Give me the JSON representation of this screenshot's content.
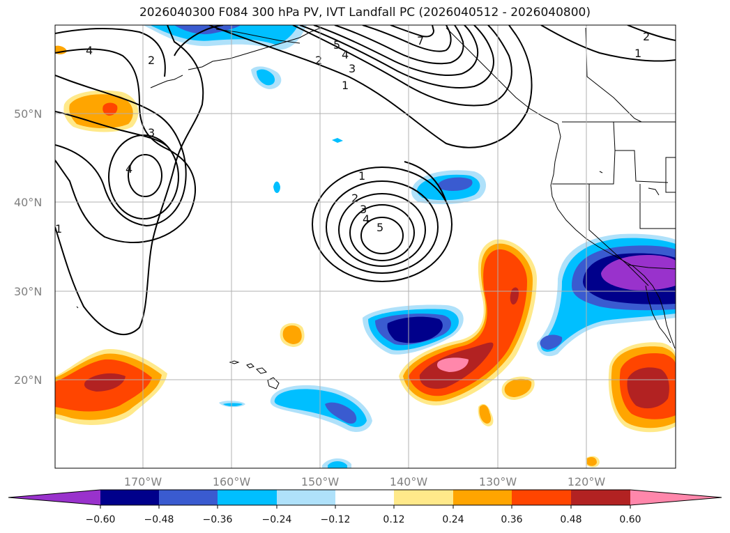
{
  "title": "2026040300 F084 300 hPa PV, IVT Landfall PC (2026040512 - 2026040800)",
  "lat_labels": [
    "50°N",
    "40°N",
    "30°N",
    "20°N"
  ],
  "lon_labels": [
    "170°W",
    "160°W",
    "150°W",
    "140°W",
    "130°W",
    "120°W"
  ],
  "colorbar": {
    "ticks": [
      "−0.60",
      "−0.48",
      "−0.36",
      "−0.24",
      "−0.12",
      "0.12",
      "0.24",
      "0.36",
      "0.48",
      "0.60"
    ],
    "colors": [
      "#9932cc",
      "#00008b",
      "#3a5bd0",
      "#00bfff",
      "#afe1fa",
      "#ffffff",
      "#ffe98a",
      "#ffa500",
      "#ff4500",
      "#b22222",
      "#ff87ab"
    ]
  },
  "contour_labels": [
    "4",
    "2",
    "3",
    "4",
    "1",
    "5",
    "4",
    "3",
    "2",
    "1",
    "7",
    "1",
    "2",
    "3",
    "4",
    "5",
    "2",
    "1"
  ]
}
